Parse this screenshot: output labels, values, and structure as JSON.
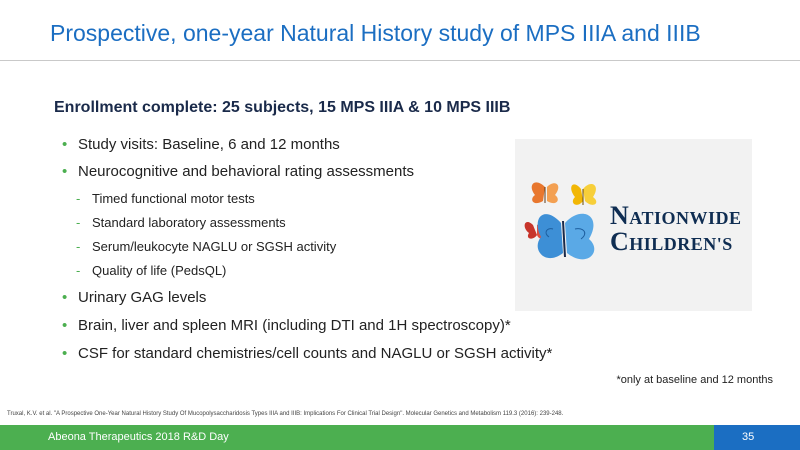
{
  "slide": {
    "title": "Prospective, one-year Natural History study of MPS IIIA and IIIB",
    "subtitle": "Enrollment complete: 25 subjects, 15 MPS IIIA & 10 MPS IIIB",
    "bullets": [
      "Study visits: Baseline, 6 and 12 months",
      "Neurocognitive and behavioral rating assessments",
      "Urinary GAG levels",
      "Brain, liver and spleen MRI (including DTI and 1H spectroscopy)*",
      "CSF for standard chemistries/cell counts and NAGLU or SGSH activity*"
    ],
    "sub_bullets": [
      "Timed functional motor tests",
      "Standard laboratory assessments",
      "Serum/leukocyte NAGLU or SGSH activity",
      "Quality of life (PedsQL)"
    ],
    "footnote": "*only at baseline and 12 months",
    "citation": "Truxal, K.V. et al. \"A Prospective One-Year Natural History Study Of Mucopolysaccharidosis Types IIIA and IIIB: Implications For Clinical Trial Design\". Molecular Genetics and Metabolism 119.3 (2016): 239-248."
  },
  "logo": {
    "line1_cap": "N",
    "line1_rest": "ATIONWIDE",
    "line2_cap": "C",
    "line2_rest": "HILDREN'S"
  },
  "footer": {
    "text": "Abeona Therapeutics 2018 R&D Day",
    "page": "35"
  },
  "colors": {
    "title_blue": "#1b6ec2",
    "bullet_green": "#4caf50",
    "footer_green": "#4caf50",
    "navy": "#0f2d52"
  }
}
